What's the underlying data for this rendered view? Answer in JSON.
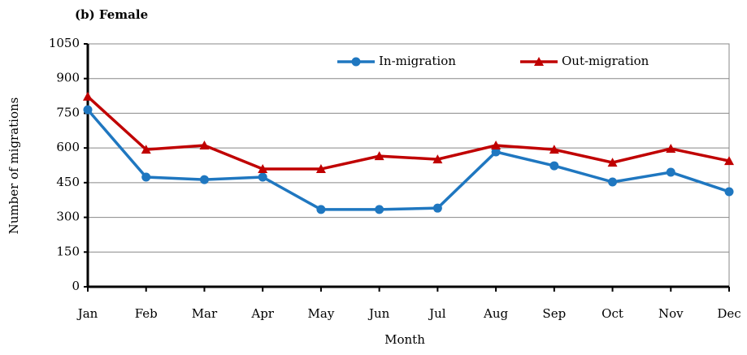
{
  "chart_data": {
    "type": "line",
    "title": "(b) Female",
    "x_label": "Month",
    "y_label": "Number of migrations",
    "categories": [
      "Jan",
      "Feb",
      "Mar",
      "Apr",
      "May",
      "Jun",
      "Jul",
      "Aug",
      "Sep",
      "Oct",
      "Nov",
      "Dec"
    ],
    "series": [
      {
        "name": "In-migration",
        "color": "#1f77c0",
        "marker": "circle",
        "values": [
          765,
          474,
          463,
          474,
          334,
          334,
          340,
          583,
          523,
          453,
          495,
          411
        ]
      },
      {
        "name": "Out-migration",
        "color": "#c00000",
        "marker": "triangle",
        "values": [
          822,
          593,
          611,
          509,
          509,
          565,
          551,
          611,
          593,
          537,
          597,
          544
        ]
      }
    ],
    "ylim": [
      0,
      1050
    ],
    "yticks": [
      0,
      150,
      300,
      450,
      600,
      750,
      900,
      1050
    ],
    "grid": true,
    "legend": "top"
  }
}
